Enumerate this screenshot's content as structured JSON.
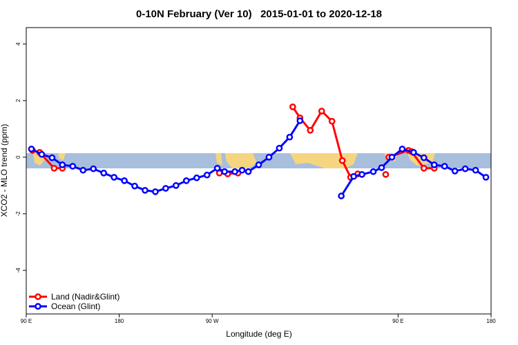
{
  "chart_data": {
    "type": "line",
    "title": "0-10N February (Ver 10)   2015-01-01 to 2020-12-18",
    "xlabel": "Longitude (deg E)",
    "ylabel": "XCO2 - MLO trend (ppm)",
    "xlim": [
      90,
      540
    ],
    "ylim": [
      -5.54,
      4.58
    ],
    "xticks": [
      {
        "value": 90,
        "label": "90 E"
      },
      180,
      {
        "value": 270,
        "label": "90 W"
      },
      {
        "value": 450,
        "label": "90 E"
      },
      {
        "value": 540,
        "label": "180"
      }
    ],
    "yticks": [
      -4,
      -2,
      0,
      2,
      4
    ],
    "legend": "bottom-left",
    "series": [
      {
        "name": "Land (Nadir&Glint)",
        "color": "#ff0000",
        "x": [
          96,
          103,
          117,
          125,
          null,
          277,
          285,
          295,
          null,
          348,
          355,
          365,
          376,
          386,
          396,
          404,
          411,
          null,
          438,
          null,
          441,
          460,
          463,
          475,
          485
        ],
        "values": [
          0.24,
          0.17,
          -0.39,
          -0.39,
          null,
          -0.56,
          -0.59,
          -0.56,
          null,
          1.78,
          1.39,
          0.95,
          1.63,
          1.27,
          -0.12,
          -0.71,
          -0.59,
          null,
          -0.61,
          null,
          0,
          0.24,
          0.2,
          -0.39,
          -0.39
        ]
      },
      {
        "name": "Ocean (Glint)",
        "color": "#0000ff",
        "x": [
          95,
          105,
          115,
          125,
          135,
          145,
          155,
          165,
          175,
          185,
          195,
          205,
          215,
          225,
          235,
          245,
          255,
          265,
          275,
          282,
          292,
          299,
          305,
          315,
          325,
          335,
          345,
          355,
          null,
          395,
          407,
          415,
          426,
          434,
          444,
          454,
          465,
          475,
          485,
          495,
          505,
          515,
          525,
          535
        ],
        "values": [
          0.29,
          0.1,
          -0.02,
          -0.27,
          -0.32,
          -0.46,
          -0.41,
          -0.56,
          -0.71,
          -0.83,
          -1.02,
          -1.17,
          -1.22,
          -1.1,
          -1.0,
          -0.83,
          -0.73,
          -0.63,
          -0.39,
          -0.51,
          -0.51,
          -0.46,
          -0.51,
          -0.27,
          0,
          0.32,
          0.71,
          1.29,
          null,
          -1.37,
          -0.68,
          -0.61,
          -0.51,
          -0.37,
          0,
          0.29,
          0.17,
          -0.02,
          -0.27,
          -0.32,
          -0.49,
          -0.41,
          -0.46,
          -0.71
        ]
      }
    ]
  }
}
